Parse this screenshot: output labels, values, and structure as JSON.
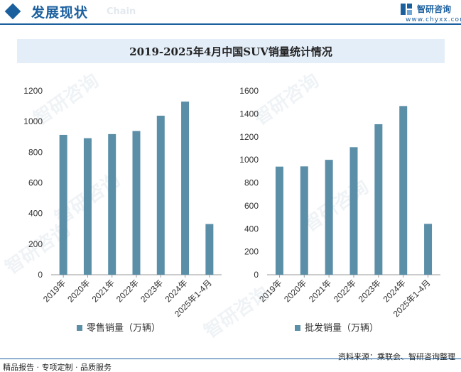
{
  "header": {
    "section_title": "发展现状",
    "section_sub": "Chain",
    "logo_name": "智研咨询",
    "logo_url": "www.chyxx.com"
  },
  "watermark_text": "智研咨询",
  "colors": {
    "bar": "#5b8fa8",
    "axis": "#9a9a9a",
    "text": "#333333"
  },
  "chart_data": [
    {
      "type": "bar",
      "title": "2019-2025年4月中国SUV销量统计情况",
      "categories": [
        "2019年",
        "2020年",
        "2021年",
        "2022年",
        "2023年",
        "2024年",
        "2025年1-4月"
      ],
      "series": [
        {
          "name": "零售销量（万辆）",
          "values": [
            913,
            891,
            918,
            938,
            1038,
            1130,
            331
          ]
        }
      ],
      "ylim": [
        0,
        1200
      ],
      "yticks": [
        0,
        200,
        400,
        600,
        800,
        1000,
        1200
      ],
      "legend": "bottom",
      "grid": false
    },
    {
      "type": "bar",
      "categories": [
        "2019年",
        "2020年",
        "2021年",
        "2022年",
        "2023年",
        "2024年",
        "2025年1-4月"
      ],
      "series": [
        {
          "name": "批发销量（万辆）",
          "values": [
            941,
            943,
            1000,
            1110,
            1310,
            1468,
            443
          ]
        }
      ],
      "ylim": [
        0,
        1600
      ],
      "yticks": [
        0,
        200,
        400,
        600,
        800,
        1000,
        1200,
        1400,
        1600
      ],
      "legend": "bottom",
      "grid": false
    }
  ],
  "footer": {
    "left": "精品报告 · 专项定制 · 品质服务",
    "source": "资料来源：乘联会、智研咨询整理"
  }
}
